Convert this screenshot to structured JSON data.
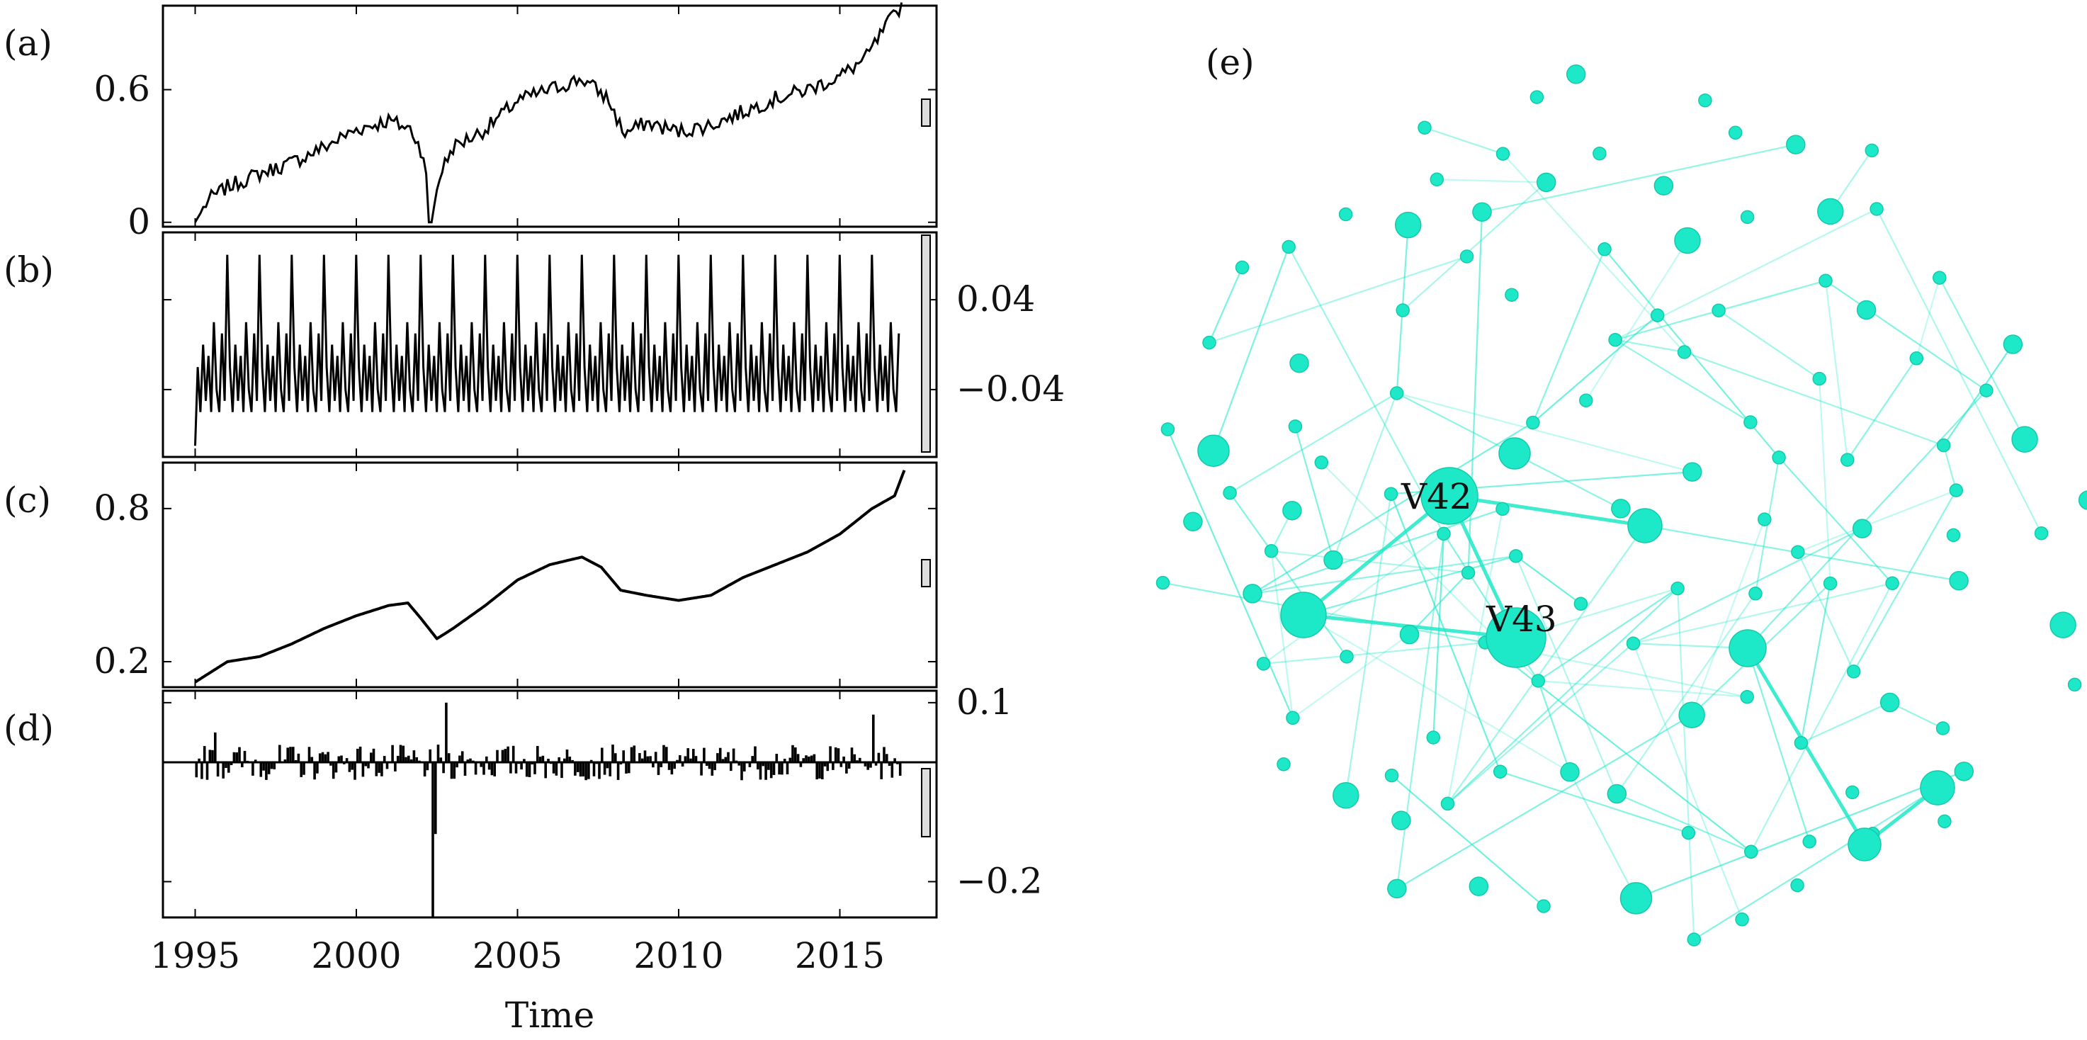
{
  "chart_data": [
    {
      "type": "line",
      "panel_label": "(a)",
      "x_range": [
        1994,
        2018
      ],
      "ylim": [
        -0.02,
        0.98
      ],
      "yticks": [
        {
          "value": 0,
          "label": "0"
        },
        {
          "value": 0.6,
          "label": "0.6"
        }
      ],
      "ytick_side": "left",
      "anchors": [
        [
          1995.0,
          0.0
        ],
        [
          1995.4,
          0.1
        ],
        [
          1996.0,
          0.16
        ],
        [
          1997.0,
          0.22
        ],
        [
          1998.0,
          0.27
        ],
        [
          1999.0,
          0.34
        ],
        [
          2000.0,
          0.42
        ],
        [
          2001.0,
          0.46
        ],
        [
          2001.7,
          0.42
        ],
        [
          2002.1,
          0.3
        ],
        [
          2002.3,
          0.0
        ],
        [
          2002.6,
          0.22
        ],
        [
          2003.0,
          0.34
        ],
        [
          2004.0,
          0.42
        ],
        [
          2005.0,
          0.55
        ],
        [
          2006.0,
          0.6
        ],
        [
          2007.0,
          0.65
        ],
        [
          2007.8,
          0.56
        ],
        [
          2008.3,
          0.4
        ],
        [
          2009.0,
          0.45
        ],
        [
          2010.0,
          0.41
        ],
        [
          2011.0,
          0.44
        ],
        [
          2012.0,
          0.5
        ],
        [
          2013.0,
          0.56
        ],
        [
          2014.0,
          0.6
        ],
        [
          2015.0,
          0.66
        ],
        [
          2015.8,
          0.74
        ],
        [
          2016.5,
          0.9
        ],
        [
          2016.9,
          0.98
        ]
      ],
      "noise_amp": 0.035,
      "samples_per_year": 12
    },
    {
      "type": "line",
      "panel_label": "(b)",
      "x_range": [
        1994,
        2018
      ],
      "ylim": [
        -0.1,
        0.1
      ],
      "yticks": [
        {
          "value": 0.04,
          "label": "0.04"
        },
        {
          "value": -0.04,
          "label": "−0.04"
        }
      ],
      "ytick_side": "right",
      "start_year": 1995.0,
      "end_year": 2016.9,
      "period_years": 1.0,
      "peak_value": 0.08,
      "baseline_value": -0.07,
      "trough_value": -0.09
    },
    {
      "type": "line",
      "panel_label": "(c)",
      "x_range": [
        1994,
        2018
      ],
      "ylim": [
        0.1,
        0.98
      ],
      "yticks": [
        {
          "value": 0.8,
          "label": "0.8"
        },
        {
          "value": 0.2,
          "label": "0.2"
        }
      ],
      "ytick_side": "left",
      "anchors": [
        [
          1995.0,
          0.12
        ],
        [
          1996.0,
          0.2
        ],
        [
          1997.0,
          0.22
        ],
        [
          1998.0,
          0.27
        ],
        [
          1999.0,
          0.33
        ],
        [
          2000.0,
          0.38
        ],
        [
          2001.0,
          0.42
        ],
        [
          2001.6,
          0.43
        ],
        [
          2002.0,
          0.37
        ],
        [
          2002.5,
          0.29
        ],
        [
          2003.0,
          0.33
        ],
        [
          2004.0,
          0.42
        ],
        [
          2005.0,
          0.52
        ],
        [
          2006.0,
          0.58
        ],
        [
          2007.0,
          0.61
        ],
        [
          2007.6,
          0.57
        ],
        [
          2008.2,
          0.48
        ],
        [
          2009.0,
          0.46
        ],
        [
          2010.0,
          0.44
        ],
        [
          2011.0,
          0.46
        ],
        [
          2012.0,
          0.53
        ],
        [
          2013.0,
          0.58
        ],
        [
          2014.0,
          0.63
        ],
        [
          2015.0,
          0.7
        ],
        [
          2016.0,
          0.8
        ],
        [
          2016.7,
          0.85
        ],
        [
          2017.0,
          0.95
        ]
      ]
    },
    {
      "type": "bar",
      "panel_label": "(d)",
      "x_range": [
        1994,
        2018
      ],
      "xlabel": "Time",
      "ylim": [
        -0.26,
        0.12
      ],
      "yticks": [
        {
          "value": 0.1,
          "label": "0.1"
        },
        {
          "value": -0.2,
          "label": "−0.2"
        }
      ],
      "ytick_side": "right",
      "xticks": [
        {
          "value": 1995,
          "label": "1995"
        },
        {
          "value": 2000,
          "label": "2000"
        },
        {
          "value": 2005,
          "label": "2005"
        },
        {
          "value": 2010,
          "label": "2010"
        },
        {
          "value": 2015,
          "label": "2015"
        }
      ],
      "start_year": 1995.0,
      "end_year": 2016.9,
      "samples_per_year": 12,
      "noise_amp": 0.03,
      "spikes": [
        [
          2002.2,
          -0.18
        ],
        [
          2002.3,
          -0.26
        ],
        [
          2002.4,
          -0.12
        ],
        [
          2001.9,
          0.08
        ],
        [
          2002.7,
          0.1
        ],
        [
          2016.0,
          0.08
        ],
        [
          2016.4,
          0.09
        ],
        [
          1995.6,
          0.05
        ]
      ]
    },
    {
      "type": "network",
      "panel_label": "(e)",
      "labeled_nodes": [
        {
          "id": 42,
          "label": "V42"
        },
        {
          "id": 43,
          "label": "V43"
        }
      ],
      "node_color": "#1de9c8"
    }
  ]
}
